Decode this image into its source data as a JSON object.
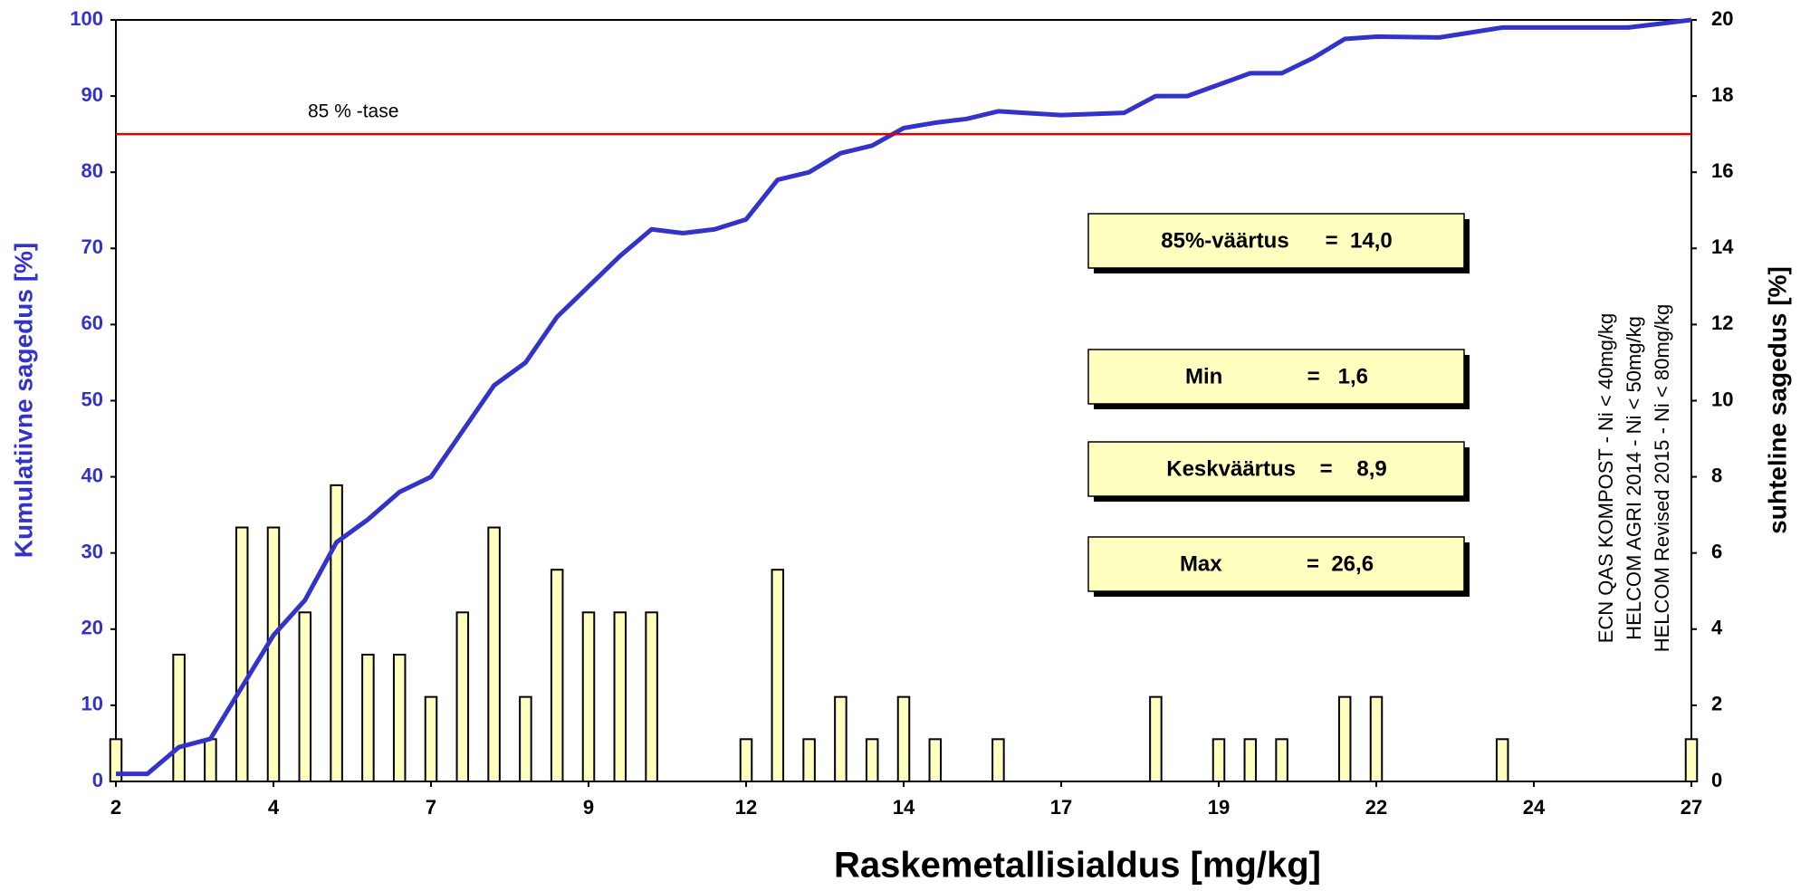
{
  "chart_data": {
    "type": "bar",
    "x_label": "Raskemetallisialdus [mg/kg]",
    "y_label": "Kumulatiivne sagedus [%]",
    "y2_label": "suhteline sagedus [%]",
    "xlim": [
      2,
      27
    ],
    "xticks": [
      2,
      {
        "value": 4.5,
        "label": "4"
      },
      7,
      {
        "value": 9.5,
        "label": "9"
      },
      12,
      {
        "value": 14.5,
        "label": "14"
      },
      17,
      {
        "value": 19.5,
        "label": "19"
      },
      22,
      {
        "value": 24.5,
        "label": "24"
      },
      27
    ],
    "ylim": [
      0,
      100
    ],
    "yticks": [
      0,
      10,
      20,
      30,
      40,
      50,
      60,
      70,
      80,
      90,
      100
    ],
    "y2lim": [
      0,
      20
    ],
    "y2ticks": [
      0,
      2,
      4,
      6,
      8,
      10,
      12,
      14,
      16,
      18,
      20
    ],
    "series": [
      {
        "type": "bar",
        "axis": "y2",
        "color": "#ffffc0",
        "x": [
          2,
          3,
          3.5,
          4,
          4.5,
          5,
          5.5,
          6,
          6.5,
          7,
          7.5,
          8,
          8.5,
          9,
          9.5,
          10,
          10.5,
          12,
          12.5,
          13,
          13.5,
          14,
          14.5,
          15,
          16,
          18.5,
          19.5,
          20,
          20.5,
          21.5,
          22,
          24,
          27
        ],
        "values": [
          1.11,
          3.33,
          1.11,
          6.67,
          6.67,
          4.44,
          7.78,
          3.33,
          3.33,
          2.22,
          4.44,
          6.67,
          2.22,
          5.56,
          4.44,
          4.44,
          4.44,
          1.11,
          5.56,
          1.11,
          2.22,
          1.11,
          2.22,
          1.11,
          1.11,
          2.22,
          1.11,
          1.11,
          1.11,
          2.22,
          2.22,
          1.11,
          1.11
        ]
      },
      {
        "type": "line",
        "axis": "y",
        "color": "#3333cc",
        "x": [
          2,
          2.5,
          3,
          3.5,
          4,
          4.5,
          5,
          5.5,
          6,
          6.5,
          7,
          7.5,
          8,
          8.5,
          9,
          9.5,
          10,
          10.5,
          11,
          11.5,
          12,
          12.5,
          13,
          13.5,
          14,
          14.5,
          15,
          15.5,
          16,
          17,
          18,
          18.5,
          19,
          19.5,
          20,
          20.5,
          21,
          21.5,
          22,
          23,
          24,
          25,
          26,
          27
        ],
        "values": [
          1,
          1,
          4.5,
          5.6,
          12.4,
          19.2,
          23.8,
          31.4,
          34.4,
          38,
          40,
          46,
          52,
          55,
          61,
          65,
          69,
          72.5,
          72,
          72.5,
          73.8,
          79,
          80,
          82.5,
          83.5,
          85.8,
          86.5,
          87,
          88,
          87.5,
          87.8,
          90,
          90,
          91.5,
          93,
          93,
          95,
          97.5,
          97.8,
          97.7,
          99,
          99,
          99,
          100
        ]
      }
    ],
    "reference_line": {
      "value": 85,
      "label": "85 % -tase",
      "color": "#e00000"
    },
    "annotations": [
      "85%-väärtus      =  14,0",
      "Min              =   1,6",
      "Keskväärtus    =    8,9",
      "Max              =  26,6"
    ],
    "side_notes": [
      "ECN QAS KOMPOST - Ni < 40mg/kg",
      "HELCOM AGRI 2014  - Ni < 50mg/kg",
      "HELCOM Revised 2015  - Ni < 80mg/kg"
    ]
  }
}
